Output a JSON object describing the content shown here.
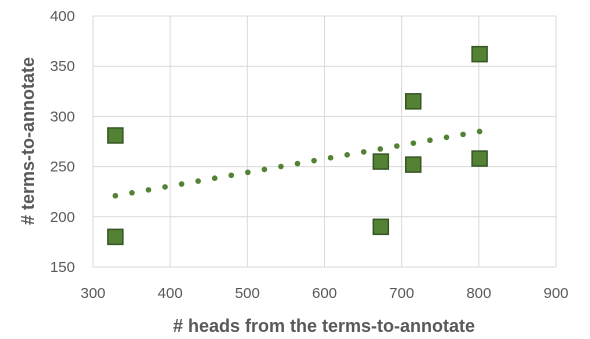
{
  "chart_data": {
    "type": "scatter",
    "xlabel": "# heads from the terms-to-annotate",
    "ylabel": "# terms-to-annotate",
    "xlim": [
      300,
      900
    ],
    "ylim": [
      150,
      400
    ],
    "xticks": [
      "300",
      "400",
      "500",
      "600",
      "700",
      "800",
      "900"
    ],
    "yticks": [
      "150",
      "200",
      "250",
      "300",
      "350",
      "400"
    ],
    "grid": true,
    "legend": "none",
    "series": [
      {
        "marker": "square",
        "color": "#548235",
        "points": [
          {
            "x": 329,
            "y": 281
          },
          {
            "x": 329,
            "y": 180
          },
          {
            "x": 673,
            "y": 255
          },
          {
            "x": 673,
            "y": 190
          },
          {
            "x": 715,
            "y": 315
          },
          {
            "x": 715,
            "y": 252
          },
          {
            "x": 801,
            "y": 362
          },
          {
            "x": 801,
            "y": 258
          }
        ]
      }
    ],
    "trendline": {
      "type": "linear",
      "style": "dotted",
      "color": "#548235",
      "start": {
        "x": 329,
        "y": 221
      },
      "end": {
        "x": 801,
        "y": 285
      }
    }
  }
}
